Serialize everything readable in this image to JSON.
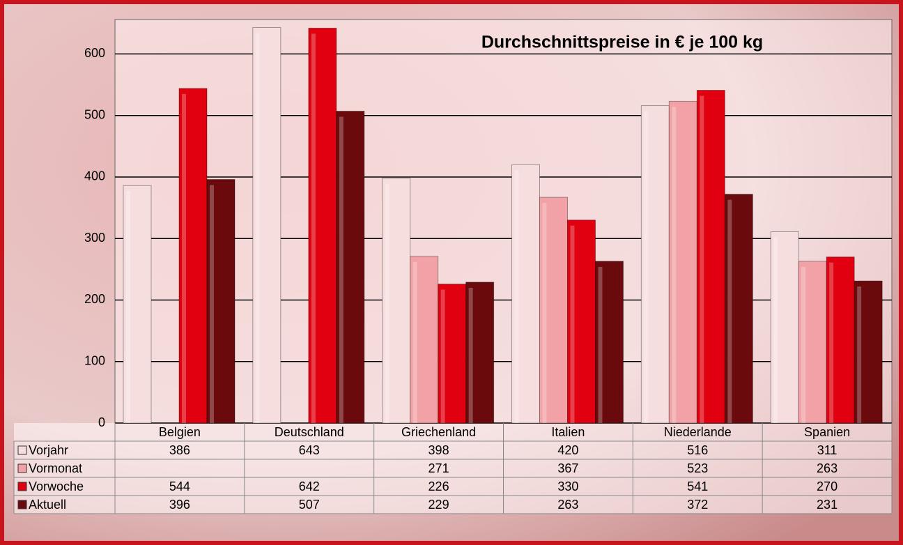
{
  "chart_data": {
    "type": "bar",
    "title": "Durchschnittspreise in € je 100 kg",
    "categories": [
      "Belgien",
      "Deutschland",
      "Griechenland",
      "Italien",
      "Niederlande",
      "Spanien"
    ],
    "series": [
      {
        "name": "Vorjahr",
        "color": "#f7dede",
        "values": [
          386,
          643,
          398,
          420,
          516,
          311
        ]
      },
      {
        "name": "Vormonat",
        "color": "#f2a2a6",
        "values": [
          null,
          null,
          271,
          367,
          523,
          263
        ]
      },
      {
        "name": "Vorwoche",
        "color": "#e0000f",
        "values": [
          544,
          642,
          226,
          330,
          541,
          270
        ]
      },
      {
        "name": "Aktuell",
        "color": "#6a0a0c",
        "values": [
          396,
          507,
          229,
          263,
          372,
          231
        ]
      }
    ],
    "ylim": [
      0,
      656
    ],
    "yticks": [
      0,
      100,
      200,
      300,
      400,
      500,
      600
    ],
    "grid": true
  }
}
